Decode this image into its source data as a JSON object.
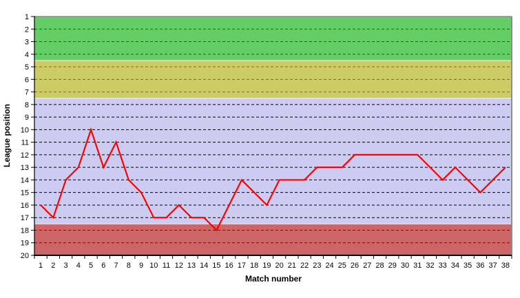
{
  "chart_data": {
    "type": "line",
    "title": "",
    "xlabel": "Match number",
    "ylabel": "League position",
    "x_ticks": [
      "1",
      "2",
      "3",
      "4",
      "5",
      "6",
      "7",
      "8",
      "9",
      "10",
      "11",
      "12",
      "13",
      "14",
      "15",
      "16",
      "17",
      "18",
      "19",
      "20",
      "21",
      "22",
      "23",
      "24",
      "25",
      "26",
      "27",
      "28",
      "29",
      "30",
      "31",
      "32",
      "33",
      "34",
      "35",
      "36",
      "37",
      "38"
    ],
    "y_ticks": [
      "1",
      "2",
      "3",
      "4",
      "5",
      "6",
      "7",
      "8",
      "9",
      "10",
      "11",
      "12",
      "13",
      "14",
      "15",
      "16",
      "17",
      "18",
      "19",
      "20"
    ],
    "values": [
      16,
      17,
      14,
      13,
      10,
      13,
      11,
      14,
      15,
      17,
      17,
      16,
      17,
      17,
      18,
      16,
      14,
      15,
      16,
      14,
      14,
      14,
      13,
      13,
      13,
      12,
      12,
      12,
      12,
      12,
      12,
      13,
      14,
      13,
      14,
      15,
      14,
      13
    ],
    "y_axis": {
      "min": 1,
      "max": 20,
      "reversed": true
    },
    "grid": true,
    "legend": "none",
    "series_color": "#FF0000",
    "axis_color": "#000000",
    "plot_border_color": "#8C8C8C",
    "bands": [
      {
        "name": "green-zone",
        "from": 1,
        "to": 4.5,
        "color": "#66CC66",
        "grid_color": "#007700"
      },
      {
        "name": "khaki-zone",
        "from": 4.5,
        "to": 7.5,
        "color": "#CCCC66",
        "grid_color": "#996600"
      },
      {
        "name": "lavender-zone",
        "from": 7.5,
        "to": 17.5,
        "color": "#CCCCF2",
        "grid_color": "#000000"
      },
      {
        "name": "red-zone",
        "from": 17.5,
        "to": 20,
        "color": "#CC6666",
        "grid_color": "#8B0000"
      }
    ]
  }
}
